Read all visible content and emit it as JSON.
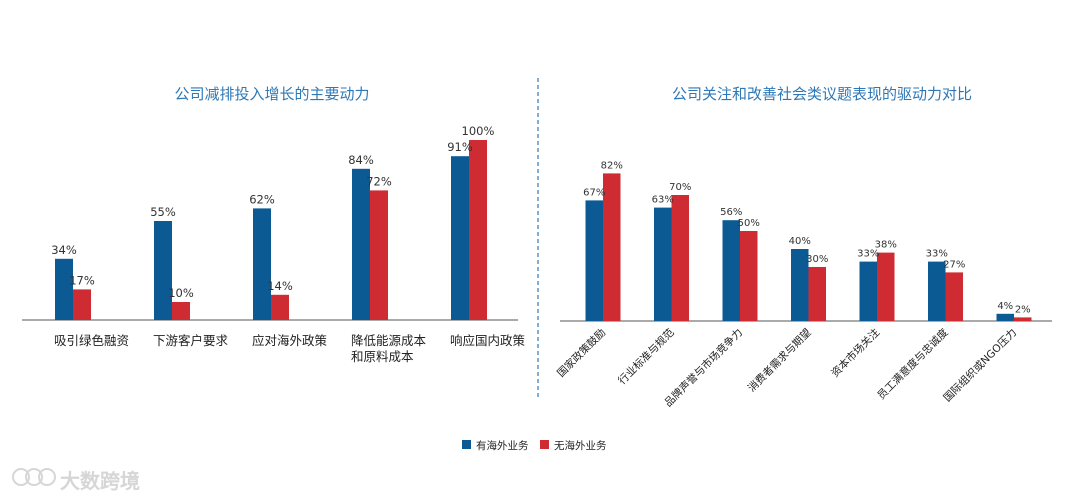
{
  "chart_data": [
    {
      "type": "bar",
      "title": "公司减排投入增长的主要动力",
      "categories": [
        "吸引绿色融资",
        "下游客户要求",
        "应对海外政策",
        "降低能源成本\n和原料成本",
        "响应国内政策"
      ],
      "series": [
        {
          "name": "有海外业务",
          "values": [
            34,
            55,
            62,
            84,
            91
          ],
          "labels": [
            "34%",
            "55%",
            "62%",
            "84%",
            "91%"
          ]
        },
        {
          "name": "无海外业务",
          "values": [
            17,
            10,
            14,
            72,
            100
          ],
          "labels": [
            "17%",
            "10%",
            "14%",
            "72%",
            "100%"
          ]
        }
      ],
      "ylim": [
        0,
        100
      ],
      "grid": false
    },
    {
      "type": "bar",
      "title": "公司关注和改善社会类议题表现的驱动力对比",
      "categories": [
        "国家政策鼓励",
        "行业标准与规范",
        "品牌声誉与市场竞争力",
        "消费者需求与期望",
        "资本市场关注",
        "员工满意度与忠诚度",
        "国际组织或NGO压力"
      ],
      "series": [
        {
          "name": "有海外业务",
          "values": [
            67,
            63,
            56,
            40,
            33,
            33,
            4
          ],
          "labels": [
            "67%",
            "63%",
            "56%",
            "40%",
            "33%",
            "33%",
            "4%"
          ]
        },
        {
          "name": "无海外业务",
          "values": [
            82,
            70,
            50,
            30,
            38,
            27,
            2
          ],
          "labels": [
            "82%",
            "70%",
            "50%",
            "30%",
            "38%",
            "27%",
            "2%"
          ]
        }
      ],
      "ylim": [
        0,
        100
      ],
      "grid": false
    }
  ],
  "legend": {
    "placement": "bottom-center",
    "items": [
      {
        "name": "有海外业务",
        "color": "#0c5a94"
      },
      {
        "name": "无海外业务",
        "color": "#cf2b33"
      }
    ]
  },
  "colors": {
    "series_a": "#0c5a94",
    "series_b": "#cf2b33",
    "title": "#2e78b7",
    "divider": "#2e78b7"
  },
  "watermark": {
    "text": "大数跨境"
  }
}
